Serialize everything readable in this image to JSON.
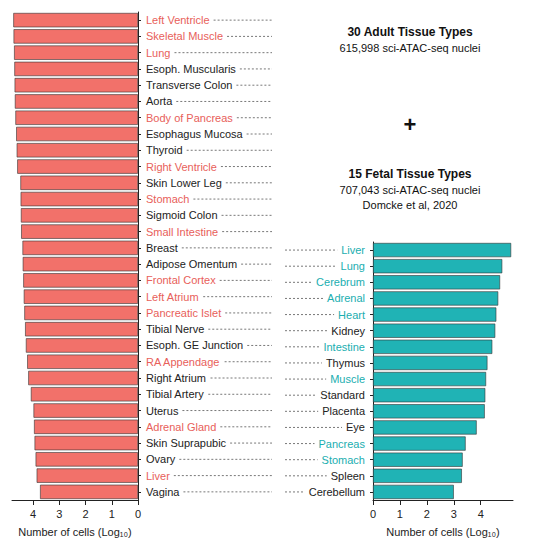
{
  "chart_data": [
    {
      "type": "bar",
      "orientation": "horizontal",
      "title": "30 Adult Tissue Types",
      "subtitle": "615,998 sci-ATAC-seq nuclei",
      "annotations": [
        "+"
      ],
      "x_label": "Number of cells (Log₁₀)",
      "categories": [
        "Left Ventricle",
        "Skeletal Muscle",
        "Lung",
        "Esoph. Muscularis",
        "Transverse Colon",
        "Aorta",
        "Body of Pancreas",
        "Esophagus Mucosa",
        "Thyroid",
        "Right Ventricle",
        "Skin Lower Leg",
        "Stomach",
        "Sigmoid Colon",
        "Small Intestine",
        "Breast",
        "Adipose Omentum",
        "Frontal Cortex",
        "Left Atrium",
        "Pancreatic Islet",
        "Tibial Nerve",
        "Esoph. GE Junction",
        "RA Appendage",
        "Right Atrium",
        "Tibial Artery",
        "Uterus",
        "Adrenal Gland",
        "Skin Suprapubic",
        "Ovary",
        "Liver",
        "Vagina"
      ],
      "values": [
        4.75,
        4.74,
        4.72,
        4.71,
        4.7,
        4.69,
        4.67,
        4.64,
        4.62,
        4.6,
        4.48,
        4.47,
        4.46,
        4.45,
        4.4,
        4.39,
        4.37,
        4.35,
        4.33,
        4.3,
        4.27,
        4.22,
        4.18,
        4.08,
        3.98,
        3.96,
        3.94,
        3.9,
        3.86,
        3.73
      ],
      "color": "#f2716a",
      "label_colors": [
        "#e8605a",
        "#e8605a",
        "#e8605a",
        "#222222",
        "#222222",
        "#222222",
        "#e8605a",
        "#222222",
        "#222222",
        "#e8605a",
        "#222222",
        "#e8605a",
        "#222222",
        "#e8605a",
        "#222222",
        "#222222",
        "#e8605a",
        "#e8605a",
        "#e8605a",
        "#222222",
        "#222222",
        "#e8605a",
        "#222222",
        "#222222",
        "#222222",
        "#e8605a",
        "#222222",
        "#222222",
        "#e8605a",
        "#222222"
      ],
      "xlim": [
        0,
        4.8
      ],
      "xticks": [
        0,
        1,
        2,
        3,
        4
      ],
      "grid": false
    },
    {
      "type": "bar",
      "orientation": "horizontal",
      "title": "15 Fetal Tissue Types",
      "subtitle": "707,043 sci-ATAC-seq nuclei",
      "annotations": [
        "Domcke et al, 2020"
      ],
      "x_label": "Number of cells (Log₁₀)",
      "categories": [
        "Liver",
        "Lung",
        "Cerebrum",
        "Adrenal",
        "Heart",
        "Kidney",
        "Intestine",
        "Thymus",
        "Muscle",
        "Standard",
        "Placenta",
        "Eye",
        "Pancreas",
        "Stomach",
        "Spleen",
        "Cerebellum"
      ],
      "values": [
        5.13,
        4.8,
        4.72,
        4.65,
        4.58,
        4.54,
        4.43,
        4.25,
        4.2,
        4.17,
        4.15,
        3.85,
        3.44,
        3.33,
        3.3,
        3.0
      ],
      "color": "#20b3b5",
      "label_colors": [
        "#1aaeb0",
        "#1aaeb0",
        "#1aaeb0",
        "#1aaeb0",
        "#1aaeb0",
        "#222222",
        "#1aaeb0",
        "#222222",
        "#1aaeb0",
        "#222222",
        "#222222",
        "#222222",
        "#1aaeb0",
        "#1aaeb0",
        "#222222",
        "#222222"
      ],
      "xlim": [
        0,
        5.2
      ],
      "xticks": [
        0,
        1,
        2,
        3,
        4
      ],
      "grid": false
    }
  ]
}
